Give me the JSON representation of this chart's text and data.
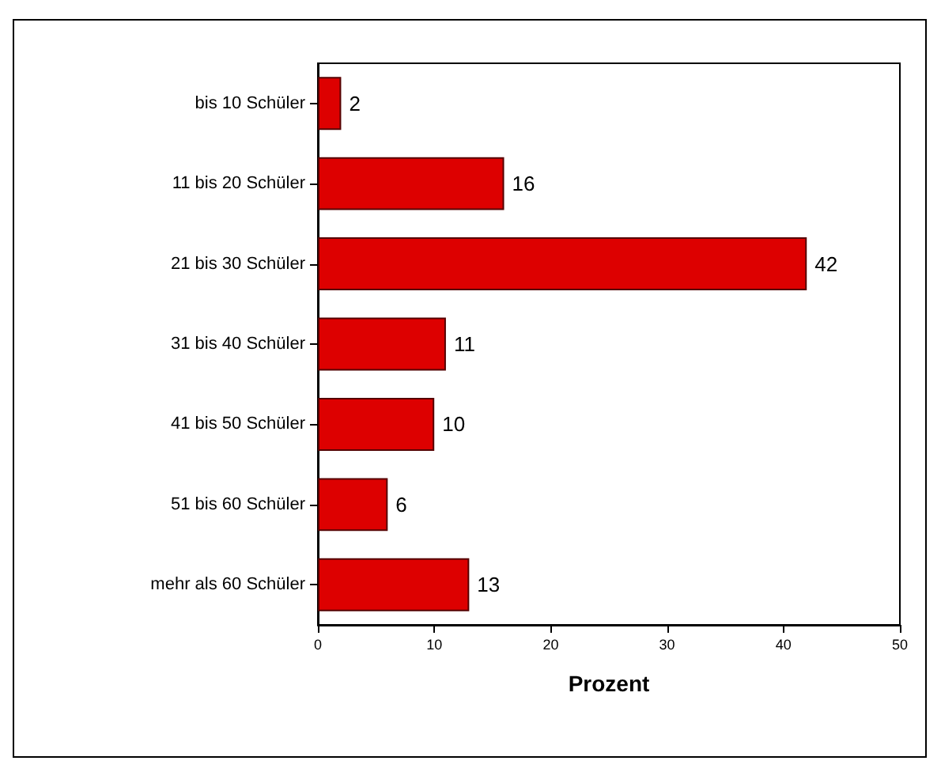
{
  "chart_data": {
    "type": "bar",
    "orientation": "horizontal",
    "xlabel": "Prozent",
    "categories": [
      "bis 10 Schüler",
      "11 bis 20 Schüler",
      "21 bis 30 Schüler",
      "31 bis 40 Schüler",
      "41 bis 50 Schüler",
      "51 bis 60 Schüler",
      "mehr als 60 Schüler"
    ],
    "values": [
      2,
      16,
      42,
      11,
      10,
      6,
      13
    ],
    "color": "#dd0000",
    "xlim": [
      0,
      50
    ],
    "xticks": [
      0,
      10,
      20,
      30,
      40,
      50
    ],
    "grid": false,
    "data_labels": true
  }
}
